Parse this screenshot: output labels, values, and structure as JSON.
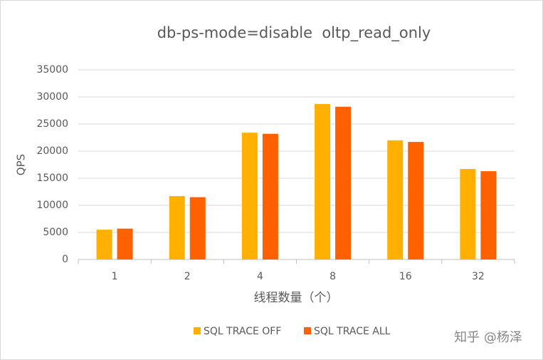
{
  "chart_data": {
    "type": "bar",
    "title": "db-ps-mode=disable  oltp_read_only",
    "x_label": "线程数量（个）",
    "y_label": "QPS",
    "categories": [
      "1",
      "2",
      "4",
      "8",
      "16",
      "32"
    ],
    "series": [
      {
        "name": "SQL TRACE OFF",
        "color": "#ffb000",
        "values": [
          5500,
          11700,
          23400,
          28700,
          22000,
          16700
        ]
      },
      {
        "name": "SQL TRACE ALL",
        "color": "#ff6000",
        "values": [
          5700,
          11500,
          23200,
          28200,
          21700,
          16300
        ]
      }
    ],
    "ylim": [
      0,
      35000
    ],
    "yticks": [
      0,
      5000,
      10000,
      15000,
      20000,
      25000,
      30000,
      35000
    ],
    "grid": true,
    "legend": "bottom",
    "watermark": "知乎 @杨泽"
  }
}
